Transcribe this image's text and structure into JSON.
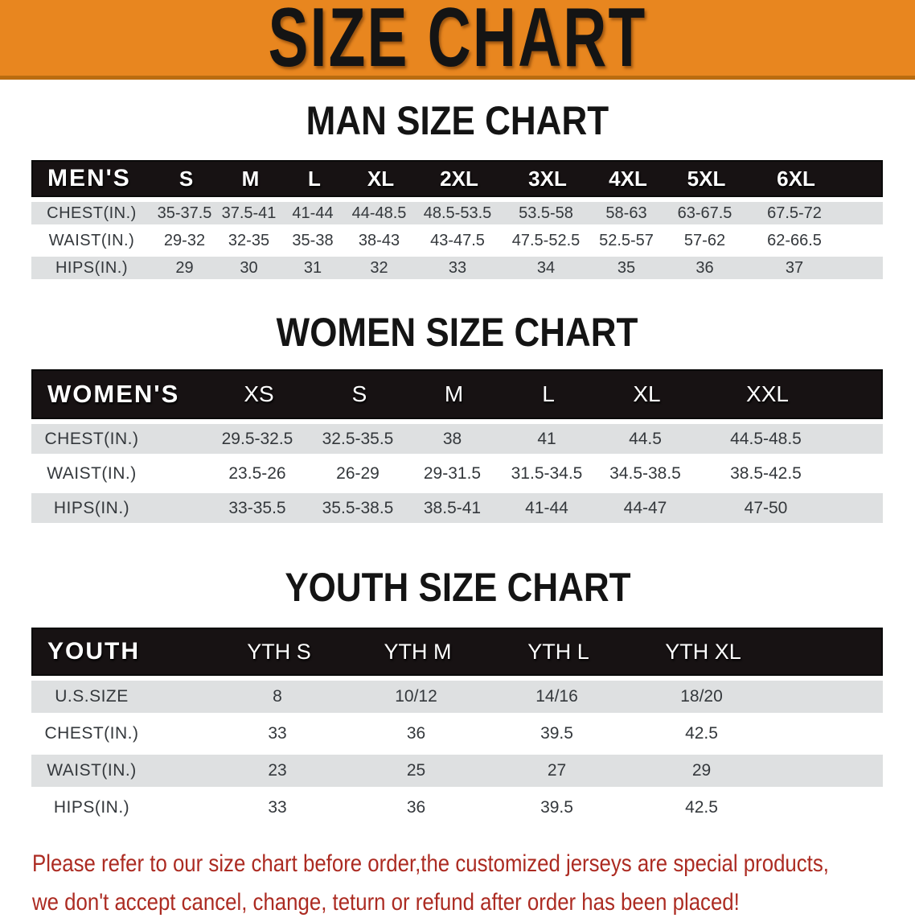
{
  "banner": {
    "title": "SIZE CHART",
    "bg_color": "#E8861F"
  },
  "sections": [
    {
      "heading": "MAN SIZE CHART",
      "group_label": "MEN'S",
      "columns": [
        "S",
        "M",
        "L",
        "XL",
        "2XL",
        "3XL",
        "4XL",
        "5XL",
        "6XL"
      ],
      "rows": [
        {
          "label": "CHEST(IN.)",
          "values": [
            "35-37.5",
            "37.5-41",
            "41-44",
            "44-48.5",
            "48.5-53.5",
            "53.5-58",
            "58-63",
            "63-67.5",
            "67.5-72"
          ]
        },
        {
          "label": "WAIST(IN.)",
          "values": [
            "29-32",
            "32-35",
            "35-38",
            "38-43",
            "43-47.5",
            "47.5-52.5",
            "52.5-57",
            "57-62",
            "62-66.5"
          ]
        },
        {
          "label": "HIPS(IN.)",
          "values": [
            "29",
            "30",
            "31",
            "32",
            "33",
            "34",
            "35",
            "36",
            "37"
          ]
        }
      ]
    },
    {
      "heading": "WOMEN SIZE CHART",
      "group_label": "WOMEN'S",
      "columns": [
        "XS",
        "S",
        "M",
        "L",
        "XL",
        "XXL"
      ],
      "rows": [
        {
          "label": "CHEST(IN.)",
          "values": [
            "29.5-32.5",
            "32.5-35.5",
            "38",
            "41",
            "44.5",
            "44.5-48.5"
          ]
        },
        {
          "label": "WAIST(IN.)",
          "values": [
            "23.5-26",
            "26-29",
            "29-31.5",
            "31.5-34.5",
            "34.5-38.5",
            "38.5-42.5"
          ]
        },
        {
          "label": "HIPS(IN.)",
          "values": [
            "33-35.5",
            "35.5-38.5",
            "38.5-41",
            "41-44",
            "44-47",
            "47-50"
          ]
        }
      ]
    },
    {
      "heading": "YOUTH SIZE CHART",
      "group_label": "YOUTH",
      "columns": [
        "YTH S",
        "YTH M",
        "YTH L",
        "YTH XL"
      ],
      "rows": [
        {
          "label": "U.S.SIZE",
          "values": [
            "8",
            "10/12",
            "14/16",
            "18/20"
          ]
        },
        {
          "label": "CHEST(IN.)",
          "values": [
            "33",
            "36",
            "39.5",
            "42.5"
          ]
        },
        {
          "label": "WAIST(IN.)",
          "values": [
            "23",
            "25",
            "27",
            "29"
          ]
        },
        {
          "label": "HIPS(IN.)",
          "values": [
            "33",
            "36",
            "39.5",
            "42.5"
          ]
        }
      ]
    }
  ],
  "footer": {
    "line1": "Please refer to our size chart before order,the customized jerseys are special products,",
    "line2": "we don't accept cancel, change, teturn or refund after order has been placed!",
    "color": "#AC2B22"
  }
}
